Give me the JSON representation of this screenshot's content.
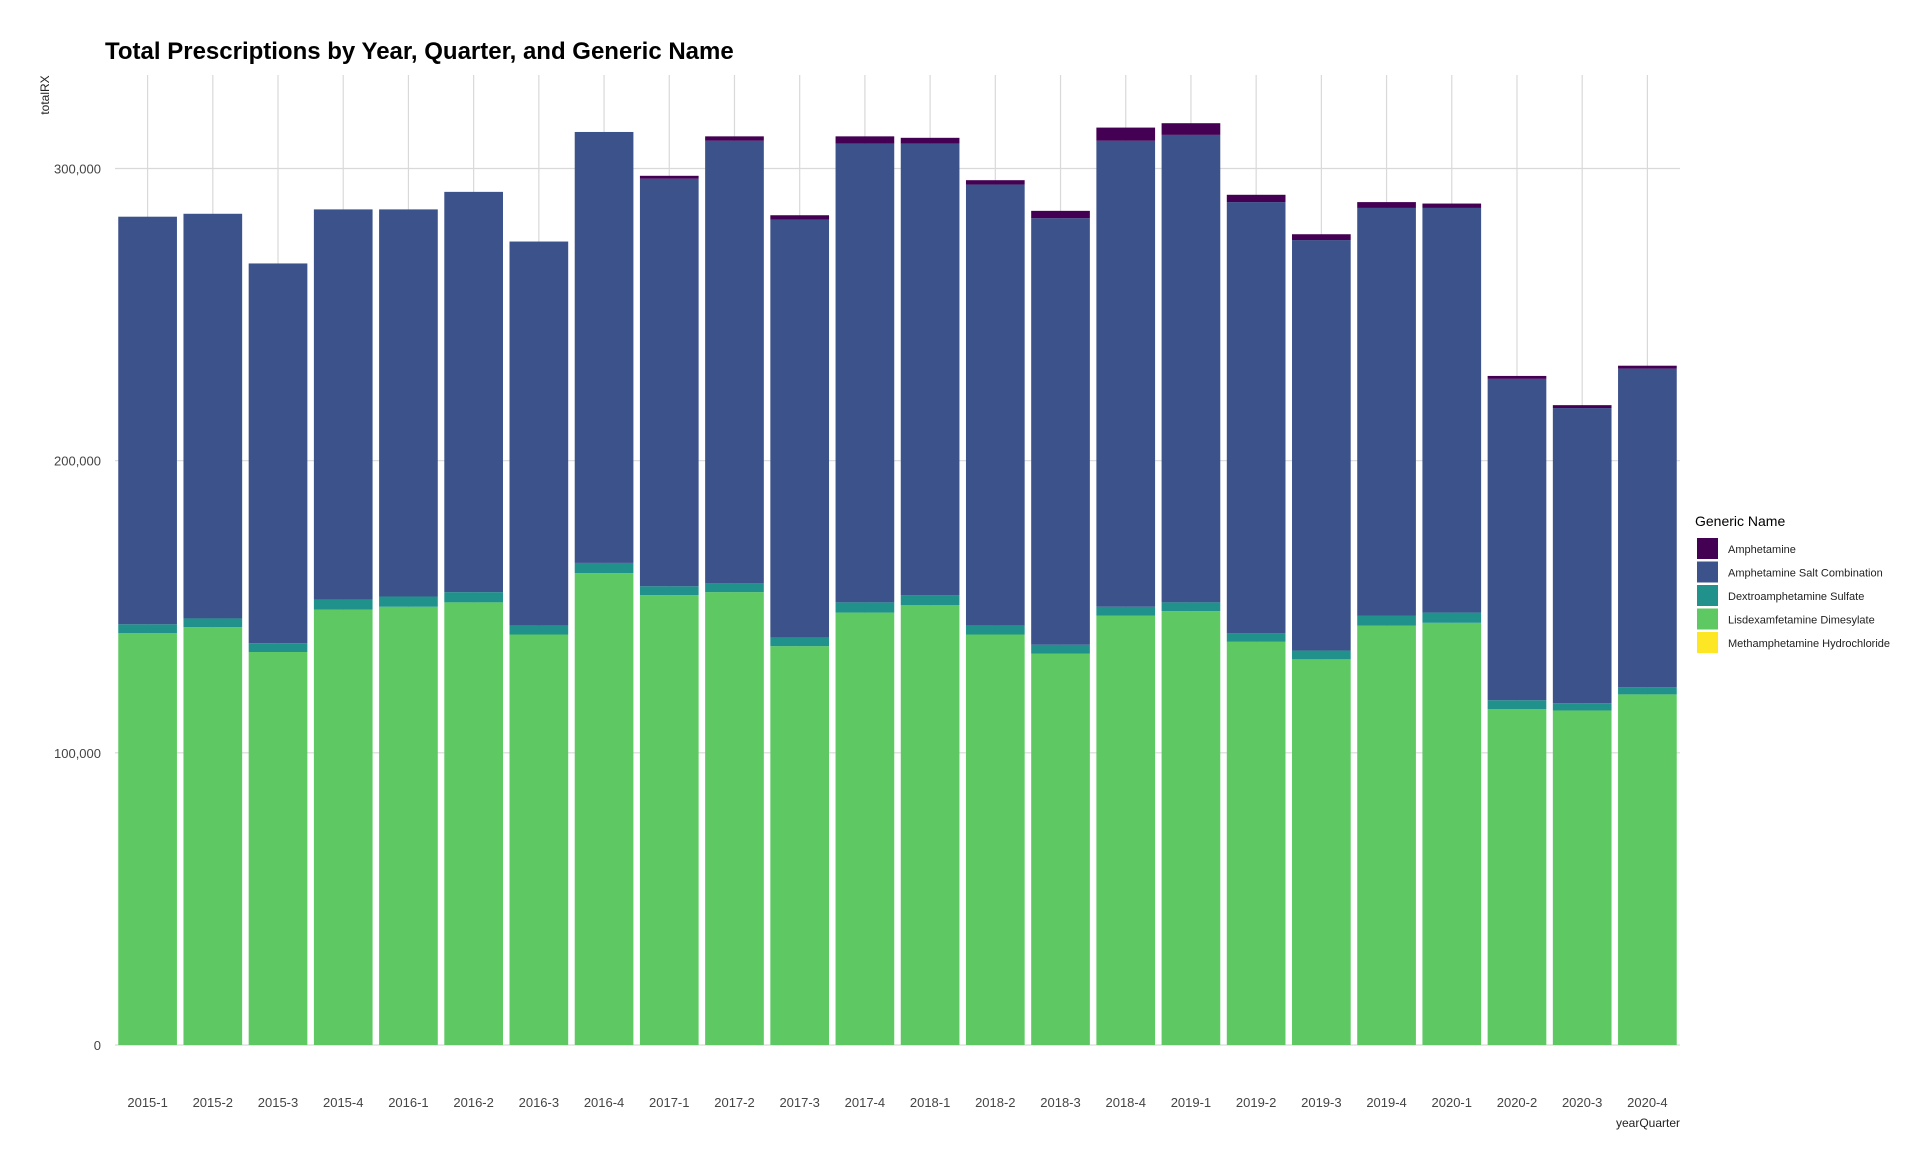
{
  "chart_data": {
    "type": "bar",
    "stacked": true,
    "title": "Total Prescriptions by Year, Quarter, and Generic Name",
    "xlabel": "yearQuarter",
    "ylabel": "totalRX",
    "ylim": [
      0,
      332000
    ],
    "yticks": [
      0,
      100000,
      200000,
      300000
    ],
    "ytick_labels": [
      "0",
      "100,000",
      "200,000",
      "300,000"
    ],
    "grid": true,
    "legend_title": "Generic Name",
    "legend_position": "right",
    "categories": [
      "2015-1",
      "2015-2",
      "2015-3",
      "2015-4",
      "2016-1",
      "2016-2",
      "2016-3",
      "2016-4",
      "2017-1",
      "2017-2",
      "2017-3",
      "2017-4",
      "2018-1",
      "2018-2",
      "2018-3",
      "2018-4",
      "2019-1",
      "2019-2",
      "2019-3",
      "2019-4",
      "2020-1",
      "2020-2",
      "2020-3",
      "2020-4"
    ],
    "series": [
      {
        "name": "Lisdexamfetamine Dimesylate",
        "color": "#5ec962",
        "values": [
          141000,
          143000,
          134500,
          149000,
          150000,
          151500,
          140500,
          161500,
          154000,
          155000,
          136500,
          148000,
          150500,
          140500,
          134000,
          147000,
          148500,
          138000,
          132000,
          143500,
          144500,
          115000,
          114500,
          120000
        ]
      },
      {
        "name": "Dextroamphetamine Sulfate",
        "color": "#21918c",
        "values": [
          3000,
          3000,
          3000,
          3500,
          3500,
          3500,
          3000,
          3500,
          3000,
          3000,
          3000,
          3500,
          3500,
          3000,
          3000,
          3000,
          3000,
          3000,
          3000,
          3500,
          3500,
          3000,
          2500,
          2500
        ]
      },
      {
        "name": "Amphetamine Salt Combination",
        "color": "#3b528b",
        "values": [
          139500,
          138500,
          130000,
          133500,
          132500,
          137000,
          131500,
          147500,
          139500,
          151500,
          143000,
          157000,
          154500,
          151000,
          146000,
          159500,
          160000,
          147500,
          140500,
          139500,
          138500,
          110000,
          101000,
          109000
        ]
      },
      {
        "name": "Amphetamine",
        "color": "#440154",
        "values": [
          0,
          0,
          0,
          0,
          0,
          0,
          0,
          0,
          1000,
          1500,
          1500,
          2500,
          2000,
          1500,
          2500,
          4500,
          4000,
          2500,
          2000,
          2000,
          1500,
          1000,
          1000,
          1000
        ]
      },
      {
        "name": "Methamphetamine Hydrochloride",
        "color": "#fde725",
        "values": [
          0,
          0,
          0,
          0,
          0,
          0,
          0,
          0,
          0,
          0,
          0,
          0,
          0,
          0,
          0,
          0,
          0,
          0,
          0,
          0,
          0,
          0,
          0,
          0
        ]
      }
    ]
  }
}
